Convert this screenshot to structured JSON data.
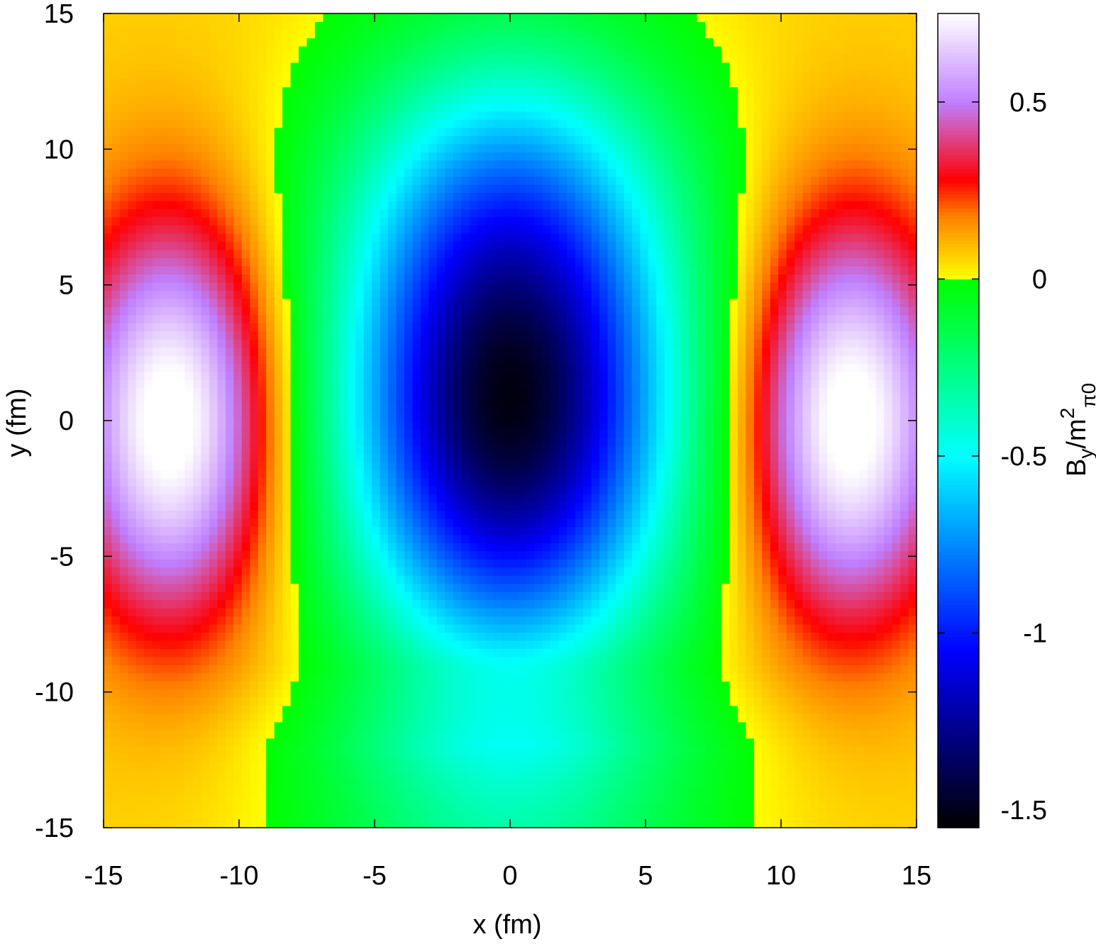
{
  "chart_data": {
    "type": "heatmap",
    "xlabel": "x (fm)",
    "ylabel": "y (fm)",
    "xlim": [
      -15,
      15
    ],
    "ylim": [
      -15,
      15
    ],
    "x_ticks": [
      "-15",
      "-10",
      "-5",
      "0",
      "5",
      "10",
      "15"
    ],
    "y_ticks": [
      "-15",
      "-10",
      "-5",
      "0",
      "5",
      "10",
      "15"
    ],
    "colorbar": {
      "label_base": "B",
      "label_sub1": "y",
      "label_mid": "/m",
      "label_sup": "2",
      "label_sub2": "π0",
      "range": [
        -1.55,
        0.75
      ],
      "ticks": [
        "-1.5",
        "-1",
        "-0.5",
        "0",
        "0.5"
      ],
      "palette": [
        {
          "v": -1.55,
          "color": "#000000"
        },
        {
          "v": -1.05,
          "color": "#0000ff"
        },
        {
          "v": -0.5,
          "color": "#00ffff"
        },
        {
          "v": 0.0,
          "color": "#00ff00"
        },
        {
          "v": 0.0001,
          "color": "#ffff00"
        },
        {
          "v": 0.18,
          "color": "#ff7f00"
        },
        {
          "v": 0.28,
          "color": "#ff0000"
        },
        {
          "v": 0.5,
          "color": "#bf7fff"
        },
        {
          "v": 0.75,
          "color": "#ffffff"
        }
      ]
    },
    "features": [
      {
        "kind": "minimum",
        "x": 0,
        "y": 0,
        "value": -1.55
      },
      {
        "kind": "maximum",
        "x": -12.5,
        "y": 0,
        "value": 0.75
      },
      {
        "kind": "maximum",
        "x": 12.5,
        "y": 0,
        "value": 0.75
      }
    ],
    "grid": false
  }
}
